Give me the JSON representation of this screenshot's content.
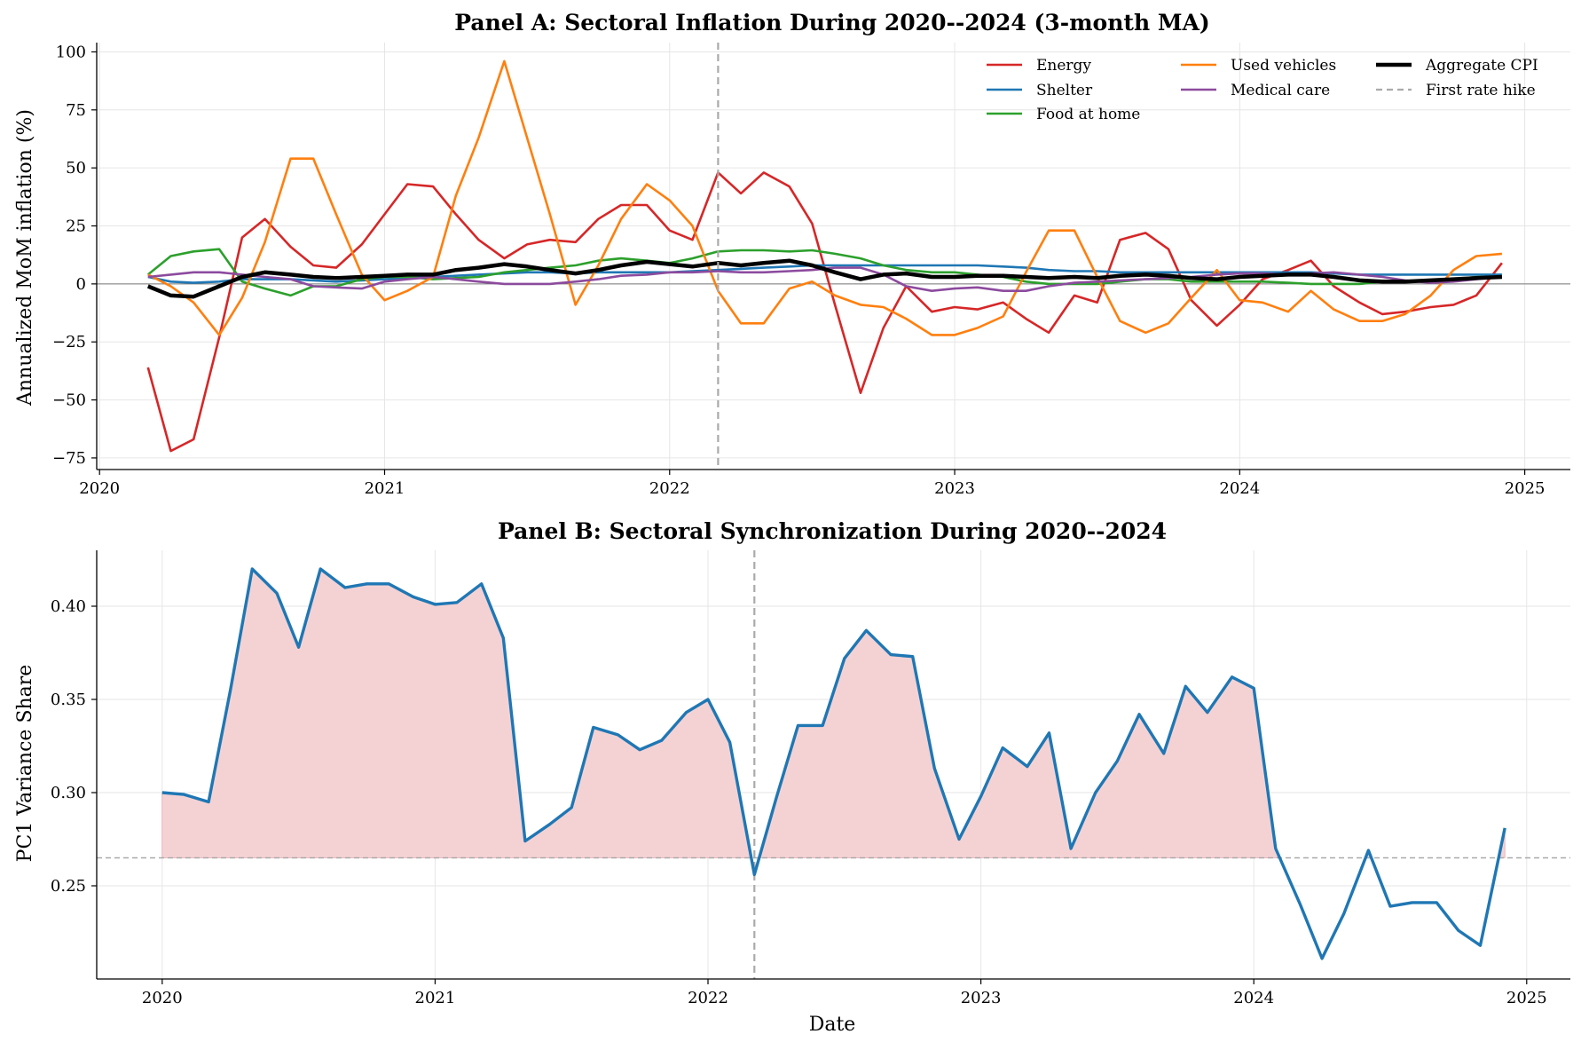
{
  "chart_data": [
    {
      "type": "line",
      "title": "Panel A: Sectoral Inflation During 2020--2024 (3-month MA)",
      "xlabel": "",
      "ylabel": "Annualized MoM inflation (%)",
      "x_tick_labels": [
        "2020",
        "2021",
        "2022",
        "2023",
        "2024",
        "2025"
      ],
      "y_tick_labels": [
        "100",
        "75",
        "50",
        "25",
        "0",
        "−25",
        "−50",
        "−75"
      ],
      "y_ticks": [
        100,
        75,
        50,
        25,
        0,
        -25,
        -50,
        -75
      ],
      "xlim": [
        2019.99,
        2025.16
      ],
      "ylim": [
        -80,
        104
      ],
      "grid": true,
      "legend_placement": "top-right",
      "x": [
        2020.17,
        2020.25,
        2020.33,
        2020.42,
        2020.5,
        2020.58,
        2020.67,
        2020.75,
        2020.83,
        2020.92,
        2021.0,
        2021.08,
        2021.17,
        2021.25,
        2021.33,
        2021.42,
        2021.5,
        2021.58,
        2021.67,
        2021.75,
        2021.83,
        2021.92,
        2022.0,
        2022.08,
        2022.17,
        2022.25,
        2022.33,
        2022.42,
        2022.5,
        2022.58,
        2022.67,
        2022.75,
        2022.83,
        2022.92,
        2023.0,
        2023.08,
        2023.17,
        2023.25,
        2023.33,
        2023.42,
        2023.5,
        2023.58,
        2023.67,
        2023.75,
        2023.83,
        2023.92,
        2024.0,
        2024.08,
        2024.17,
        2024.25,
        2024.33,
        2024.42,
        2024.5,
        2024.58,
        2024.67,
        2024.75,
        2024.83,
        2024.92
      ],
      "series": [
        {
          "name": "Energy",
          "color": "#d62728",
          "width": 2.6,
          "values": [
            -36,
            -72,
            -67,
            -23,
            20,
            28,
            16,
            8,
            7,
            17,
            30,
            43,
            42,
            30,
            19,
            11,
            17,
            19,
            18,
            28,
            34,
            34,
            23,
            19,
            48,
            39,
            48,
            42,
            26,
            -9,
            -47,
            -19,
            -1,
            -12,
            -10,
            -11,
            -8,
            -15,
            -21,
            -5,
            -8,
            19,
            22,
            15,
            -7,
            -18,
            -9,
            2,
            6,
            10,
            -1,
            -8,
            -13,
            -12,
            -10,
            -9,
            -5,
            9
          ]
        },
        {
          "name": "Shelter",
          "color": "#1f77b4",
          "width": 2.6,
          "values": [
            3,
            1,
            0.5,
            1,
            2,
            2,
            2,
            1.5,
            1,
            1.5,
            2,
            2.5,
            3,
            3.5,
            4,
            4.5,
            5,
            5,
            4.5,
            5,
            5,
            5,
            5,
            5.5,
            6,
            6.5,
            7,
            7.5,
            8,
            8,
            8,
            8,
            8,
            8,
            8,
            8,
            7.5,
            7,
            6,
            5.5,
            5.5,
            5,
            5,
            5,
            5,
            5,
            5,
            5,
            5,
            5,
            4.5,
            4,
            4,
            4,
            4,
            4,
            4,
            4
          ]
        },
        {
          "name": "Food at home",
          "color": "#2ca02c",
          "width": 2.6,
          "values": [
            4,
            12,
            14,
            15,
            1,
            -2,
            -5,
            -1,
            -1,
            2,
            3,
            3,
            2,
            2.5,
            3,
            5,
            6,
            7,
            8,
            10,
            11,
            10,
            9,
            11,
            14,
            14.5,
            14.5,
            14,
            14.5,
            13,
            11,
            8,
            6,
            5,
            5,
            4,
            3,
            1,
            0,
            0,
            0,
            1,
            2,
            2,
            1,
            1,
            1,
            1,
            0.5,
            0,
            0,
            0,
            1,
            1,
            1.5,
            2,
            3,
            3
          ]
        },
        {
          "name": "Used vehicles",
          "color": "#ff7f0e",
          "width": 2.6,
          "values": [
            4,
            -1,
            -8,
            -22,
            -6,
            18,
            54,
            54,
            30,
            4,
            -7,
            -3,
            3,
            38,
            63,
            96,
            63,
            30,
            -9,
            8,
            28,
            43,
            36,
            25,
            -3,
            -17,
            -17,
            -2,
            1,
            -5,
            -9,
            -10,
            -15,
            -22,
            -22,
            -19,
            -14,
            5,
            23,
            23,
            3,
            -16,
            -21,
            -17,
            -6,
            6,
            -7,
            -8,
            -12,
            -3,
            -11,
            -16,
            -16,
            -13,
            -5,
            6,
            12,
            13
          ]
        },
        {
          "name": "Medical care",
          "color": "#8c4b9e",
          "width": 2.6,
          "values": [
            3,
            4,
            5,
            5,
            4,
            3,
            2,
            -1,
            -1.5,
            -2,
            1,
            2,
            3,
            2,
            1,
            0,
            0,
            0,
            1,
            2,
            3.5,
            4,
            5,
            5,
            5.5,
            5,
            5,
            5.5,
            6,
            7,
            7,
            4,
            -1,
            -3,
            -2,
            -1.5,
            -3,
            -3,
            -1,
            0.5,
            1,
            1.5,
            2,
            2.5,
            3,
            4,
            4.5,
            4.5,
            4,
            4.5,
            5,
            4,
            3,
            1.5,
            0.5,
            1,
            2,
            3
          ]
        },
        {
          "name": "Aggregate CPI",
          "color": "#000000",
          "width": 4.5,
          "values": [
            -1,
            -5,
            -5.5,
            -1,
            3,
            5,
            4,
            3,
            2.5,
            3,
            3.5,
            4,
            4,
            6,
            7,
            8.5,
            7.5,
            6,
            4.5,
            6,
            8,
            9.5,
            8.5,
            7.5,
            9,
            8,
            9,
            10,
            8,
            5,
            2,
            4,
            4.5,
            3,
            3,
            3.5,
            3.5,
            3,
            2.5,
            3,
            2.5,
            3.5,
            4,
            3.5,
            2.5,
            2,
            3,
            3.5,
            4,
            4,
            3,
            1.5,
            1,
            1,
            1.5,
            2,
            2.5,
            3
          ]
        }
      ],
      "annotations": [
        {
          "name": "First rate hike",
          "type": "vline",
          "x": 2022.17,
          "color": "#aaaaaa"
        }
      ]
    },
    {
      "type": "area",
      "title": "Panel B: Sectoral Synchronization During 2020--2024",
      "xlabel": "Date",
      "ylabel": "PC1 Variance Share",
      "x_tick_labels": [
        "2020",
        "2021",
        "2022",
        "2023",
        "2024",
        "2025"
      ],
      "y_tick_labels": [
        "0.40",
        "0.35",
        "0.30",
        "0.25"
      ],
      "y_ticks": [
        0.4,
        0.35,
        0.3,
        0.25
      ],
      "xlim": [
        2019.76,
        2025.16
      ],
      "ylim": [
        0.2,
        0.43
      ],
      "grid": true,
      "threshold": 0.265,
      "fill_color": "#f4d2d4",
      "line_color": "#1f77b4",
      "x": [
        2020.0,
        2020.08,
        2020.17,
        2020.25,
        2020.33,
        2020.42,
        2020.5,
        2020.58,
        2020.67,
        2020.75,
        2020.83,
        2020.92,
        2021.0,
        2021.08,
        2021.17,
        2021.25,
        2021.33,
        2021.42,
        2021.5,
        2021.58,
        2021.67,
        2021.75,
        2021.83,
        2021.92,
        2022.0,
        2022.08,
        2022.17,
        2022.25,
        2022.33,
        2022.42,
        2022.5,
        2022.58,
        2022.67,
        2022.75,
        2022.83,
        2022.92,
        2023.0,
        2023.08,
        2023.17,
        2023.25,
        2023.33,
        2023.42,
        2023.5,
        2023.58,
        2023.67,
        2023.75,
        2023.83,
        2023.92,
        2024.0,
        2024.08,
        2024.17,
        2024.25,
        2024.33,
        2024.42,
        2024.5,
        2024.58,
        2024.67,
        2024.75,
        2024.83,
        2024.92
      ],
      "values": [
        0.3,
        0.299,
        0.295,
        0.355,
        0.42,
        0.407,
        0.378,
        0.42,
        0.41,
        0.412,
        0.412,
        0.405,
        0.401,
        0.402,
        0.412,
        0.383,
        0.274,
        0.283,
        0.292,
        0.335,
        0.331,
        0.323,
        0.328,
        0.343,
        0.35,
        0.327,
        0.256,
        0.297,
        0.336,
        0.336,
        0.372,
        0.387,
        0.374,
        0.373,
        0.313,
        0.275,
        0.298,
        0.324,
        0.314,
        0.332,
        0.27,
        0.3,
        0.317,
        0.342,
        0.321,
        0.357,
        0.343,
        0.362,
        0.356,
        0.27,
        0.24,
        0.211,
        0.235,
        0.269,
        0.239,
        0.241,
        0.241,
        0.226,
        0.218,
        0.281
      ],
      "annotations": [
        {
          "type": "vline",
          "x": 2022.17,
          "color": "#aaaaaa"
        }
      ]
    }
  ]
}
